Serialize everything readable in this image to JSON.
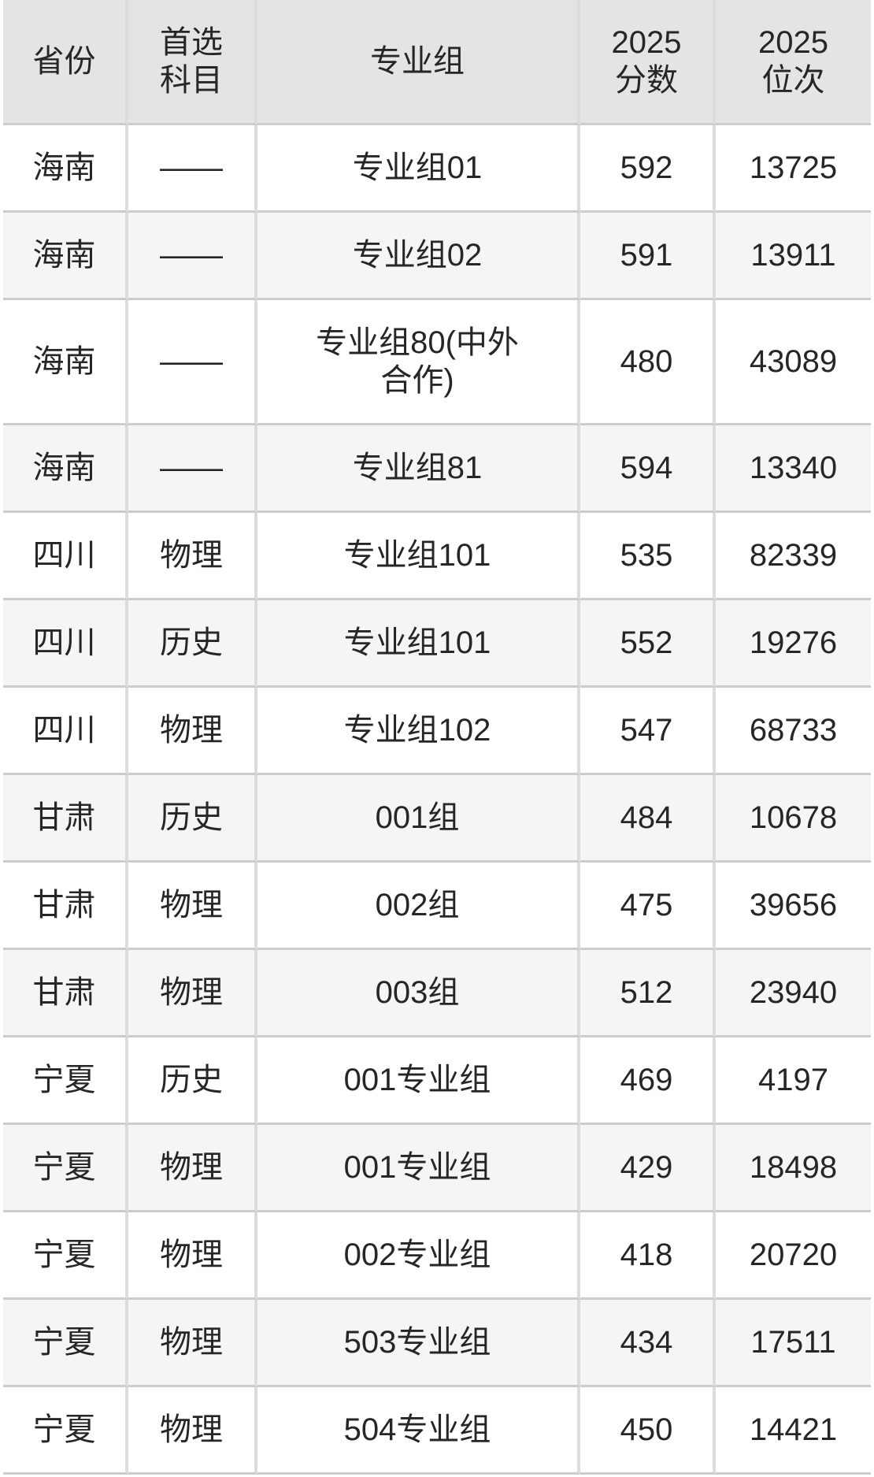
{
  "table": {
    "columns": [
      {
        "id": "province",
        "label": "省份"
      },
      {
        "id": "subject",
        "label": "首选\n科目"
      },
      {
        "id": "group",
        "label": "专业组"
      },
      {
        "id": "score2025",
        "label": "2025\n分数"
      },
      {
        "id": "rank2025",
        "label": "2025\n位次"
      }
    ],
    "rows": [
      {
        "province": "海南",
        "subject": "——",
        "group": "专业组01",
        "score2025": "592",
        "rank2025": "13725"
      },
      {
        "province": "海南",
        "subject": "——",
        "group": "专业组02",
        "score2025": "591",
        "rank2025": "13911"
      },
      {
        "province": "海南",
        "subject": "——",
        "group": "专业组80(中外\n合作)",
        "score2025": "480",
        "rank2025": "43089"
      },
      {
        "province": "海南",
        "subject": "——",
        "group": "专业组81",
        "score2025": "594",
        "rank2025": "13340"
      },
      {
        "province": "四川",
        "subject": "物理",
        "group": "专业组101",
        "score2025": "535",
        "rank2025": "82339"
      },
      {
        "province": "四川",
        "subject": "历史",
        "group": "专业组101",
        "score2025": "552",
        "rank2025": "19276"
      },
      {
        "province": "四川",
        "subject": "物理",
        "group": "专业组102",
        "score2025": "547",
        "rank2025": "68733"
      },
      {
        "province": "甘肃",
        "subject": "历史",
        "group": "001组",
        "score2025": "484",
        "rank2025": "10678"
      },
      {
        "province": "甘肃",
        "subject": "物理",
        "group": "002组",
        "score2025": "475",
        "rank2025": "39656"
      },
      {
        "province": "甘肃",
        "subject": "物理",
        "group": "003组",
        "score2025": "512",
        "rank2025": "23940"
      },
      {
        "province": "宁夏",
        "subject": "历史",
        "group": "001专业组",
        "score2025": "469",
        "rank2025": "4197"
      },
      {
        "province": "宁夏",
        "subject": "物理",
        "group": "001专业组",
        "score2025": "429",
        "rank2025": "18498"
      },
      {
        "province": "宁夏",
        "subject": "物理",
        "group": "002专业组",
        "score2025": "418",
        "rank2025": "20720"
      },
      {
        "province": "宁夏",
        "subject": "物理",
        "group": "503专业组",
        "score2025": "434",
        "rank2025": "17511"
      },
      {
        "province": "宁夏",
        "subject": "物理",
        "group": "504专业组",
        "score2025": "450",
        "rank2025": "14421"
      }
    ]
  },
  "colors": {
    "page_bg": "#ffffff",
    "header_bg": "#e4e4e4",
    "row_bg": "#ffffff",
    "row_alt_bg": "#f5f5f5",
    "h_border": "#cccccc",
    "v_border": "#dcdcdc",
    "text": "#262626"
  }
}
